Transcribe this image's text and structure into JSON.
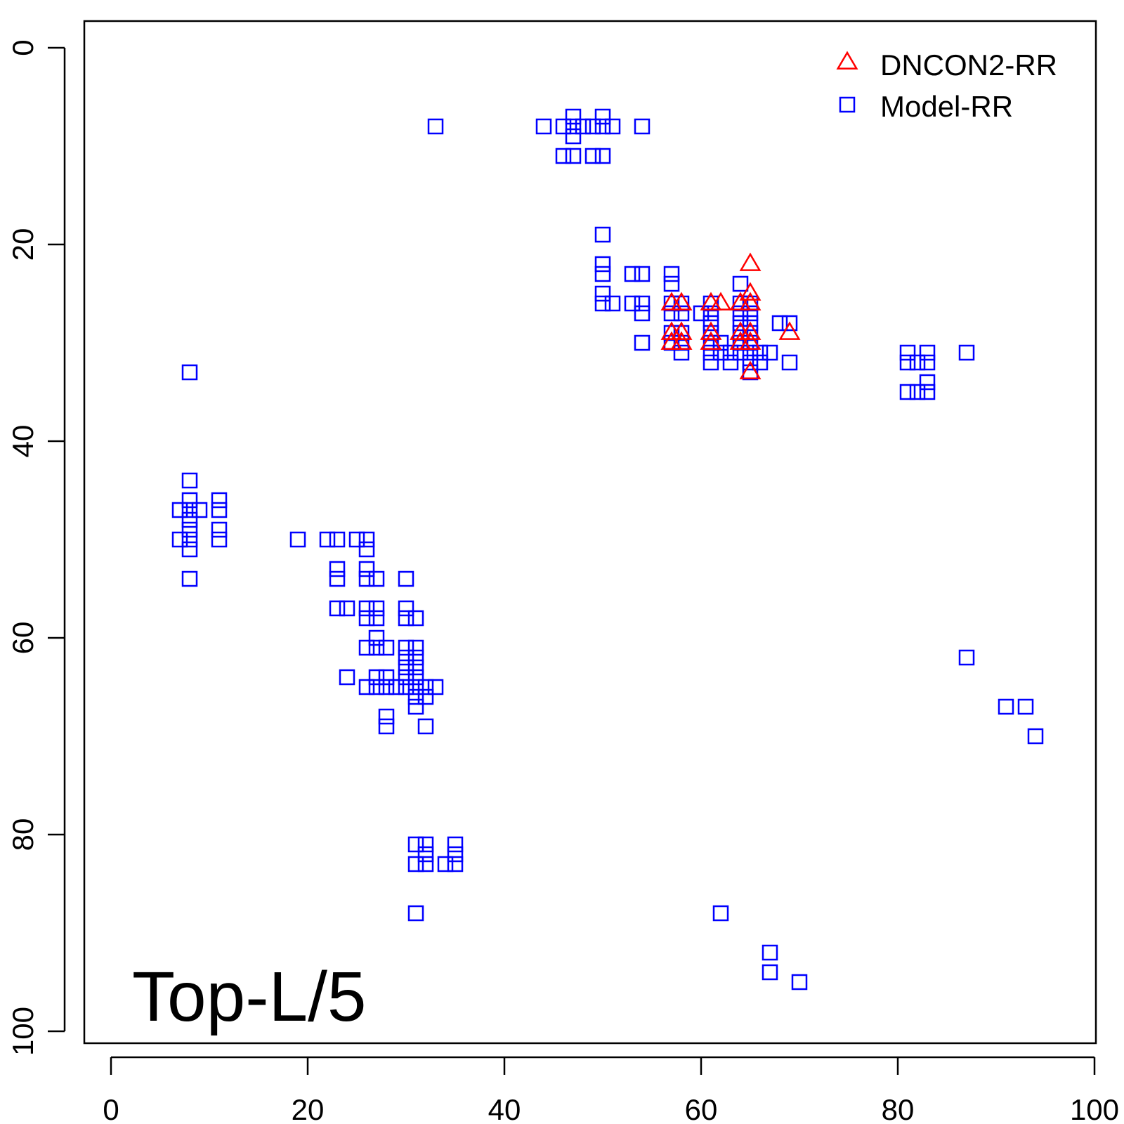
{
  "chart_data": {
    "type": "scatter",
    "title": "",
    "xlabel": "",
    "ylabel": "",
    "xlim": [
      -3,
      100
    ],
    "ylim": [
      100,
      -3
    ],
    "y_reversed": true,
    "xticks": [
      0,
      20,
      40,
      60,
      80,
      100
    ],
    "yticks": [
      0,
      20,
      40,
      60,
      80,
      100
    ],
    "grid": false,
    "legend_position": "top-right",
    "annotation": "Top-L/5",
    "series": [
      {
        "name": "DNCON2-RR",
        "marker": "triangle",
        "color": "#ff0000",
        "points": [
          [
            65,
            22
          ],
          [
            65,
            25
          ],
          [
            57,
            26
          ],
          [
            58,
            26
          ],
          [
            61,
            26
          ],
          [
            62,
            26
          ],
          [
            64,
            26
          ],
          [
            65,
            26
          ],
          [
            57,
            29
          ],
          [
            58,
            29
          ],
          [
            61,
            29
          ],
          [
            64,
            29
          ],
          [
            65,
            29
          ],
          [
            69,
            29
          ],
          [
            57,
            30
          ],
          [
            58,
            30
          ],
          [
            61,
            30
          ],
          [
            64,
            30
          ],
          [
            65,
            30
          ],
          [
            65,
            33
          ]
        ]
      },
      {
        "name": "Model-RR",
        "marker": "square",
        "color": "#0000ff",
        "points": [
          [
            33,
            8
          ],
          [
            44,
            8
          ],
          [
            46,
            8
          ],
          [
            47,
            8
          ],
          [
            48,
            8
          ],
          [
            49,
            8
          ],
          [
            50,
            8
          ],
          [
            51,
            8
          ],
          [
            54,
            8
          ],
          [
            47,
            7
          ],
          [
            50,
            7
          ],
          [
            47,
            9
          ],
          [
            46,
            11
          ],
          [
            47,
            11
          ],
          [
            49,
            11
          ],
          [
            50,
            11
          ],
          [
            50,
            19
          ],
          [
            50,
            22
          ],
          [
            50,
            23
          ],
          [
            53,
            23
          ],
          [
            54,
            23
          ],
          [
            57,
            23
          ],
          [
            57,
            24
          ],
          [
            64,
            24
          ],
          [
            50,
            25
          ],
          [
            50,
            26
          ],
          [
            51,
            26
          ],
          [
            53,
            26
          ],
          [
            54,
            26
          ],
          [
            57,
            26
          ],
          [
            58,
            26
          ],
          [
            61,
            26
          ],
          [
            64,
            26
          ],
          [
            65,
            26
          ],
          [
            54,
            27
          ],
          [
            57,
            27
          ],
          [
            58,
            27
          ],
          [
            60,
            27
          ],
          [
            61,
            27
          ],
          [
            64,
            27
          ],
          [
            65,
            27
          ],
          [
            61,
            28
          ],
          [
            64,
            28
          ],
          [
            65,
            28
          ],
          [
            68,
            28
          ],
          [
            69,
            28
          ],
          [
            57,
            29
          ],
          [
            58,
            29
          ],
          [
            61,
            29
          ],
          [
            64,
            29
          ],
          [
            65,
            29
          ],
          [
            54,
            30
          ],
          [
            57,
            30
          ],
          [
            58,
            30
          ],
          [
            61,
            30
          ],
          [
            62,
            30
          ],
          [
            64,
            30
          ],
          [
            65,
            30
          ],
          [
            58,
            31
          ],
          [
            61,
            31
          ],
          [
            62,
            31
          ],
          [
            63,
            31
          ],
          [
            64,
            31
          ],
          [
            65,
            31
          ],
          [
            66,
            31
          ],
          [
            67,
            31
          ],
          [
            61,
            32
          ],
          [
            63,
            32
          ],
          [
            65,
            32
          ],
          [
            66,
            32
          ],
          [
            69,
            32
          ],
          [
            65,
            33
          ],
          [
            81,
            31
          ],
          [
            83,
            31
          ],
          [
            87,
            31
          ],
          [
            81,
            32
          ],
          [
            82,
            32
          ],
          [
            83,
            32
          ],
          [
            83,
            34
          ],
          [
            81,
            35
          ],
          [
            82,
            35
          ],
          [
            83,
            35
          ],
          [
            8,
            33
          ],
          [
            8,
            44
          ],
          [
            8,
            46
          ],
          [
            11,
            46
          ],
          [
            7,
            47
          ],
          [
            8,
            47
          ],
          [
            9,
            47
          ],
          [
            11,
            47
          ],
          [
            8,
            48
          ],
          [
            8,
            49
          ],
          [
            11,
            49
          ],
          [
            7,
            50
          ],
          [
            8,
            50
          ],
          [
            11,
            50
          ],
          [
            8,
            51
          ],
          [
            8,
            54
          ],
          [
            19,
            50
          ],
          [
            22,
            50
          ],
          [
            23,
            50
          ],
          [
            25,
            50
          ],
          [
            26,
            50
          ],
          [
            26,
            51
          ],
          [
            23,
            53
          ],
          [
            26,
            53
          ],
          [
            23,
            54
          ],
          [
            26,
            54
          ],
          [
            27,
            54
          ],
          [
            30,
            54
          ],
          [
            23,
            57
          ],
          [
            24,
            57
          ],
          [
            26,
            57
          ],
          [
            27,
            57
          ],
          [
            30,
            57
          ],
          [
            26,
            58
          ],
          [
            27,
            58
          ],
          [
            30,
            58
          ],
          [
            31,
            58
          ],
          [
            27,
            60
          ],
          [
            26,
            61
          ],
          [
            27,
            61
          ],
          [
            28,
            61
          ],
          [
            30,
            61
          ],
          [
            31,
            61
          ],
          [
            30,
            62
          ],
          [
            31,
            62
          ],
          [
            30,
            63
          ],
          [
            31,
            63
          ],
          [
            24,
            64
          ],
          [
            27,
            64
          ],
          [
            28,
            64
          ],
          [
            30,
            64
          ],
          [
            31,
            64
          ],
          [
            26,
            65
          ],
          [
            27,
            65
          ],
          [
            28,
            65
          ],
          [
            29,
            65
          ],
          [
            30,
            65
          ],
          [
            31,
            65
          ],
          [
            32,
            65
          ],
          [
            33,
            65
          ],
          [
            31,
            66
          ],
          [
            32,
            66
          ],
          [
            31,
            67
          ],
          [
            28,
            68
          ],
          [
            28,
            69
          ],
          [
            32,
            69
          ],
          [
            31,
            81
          ],
          [
            32,
            81
          ],
          [
            35,
            81
          ],
          [
            32,
            82
          ],
          [
            35,
            82
          ],
          [
            31,
            83
          ],
          [
            32,
            83
          ],
          [
            34,
            83
          ],
          [
            35,
            83
          ],
          [
            31,
            88
          ],
          [
            62,
            88
          ],
          [
            87,
            62
          ],
          [
            91,
            67
          ],
          [
            93,
            67
          ],
          [
            94,
            70
          ],
          [
            67,
            92
          ],
          [
            67,
            94
          ],
          [
            70,
            95
          ]
        ]
      }
    ]
  }
}
